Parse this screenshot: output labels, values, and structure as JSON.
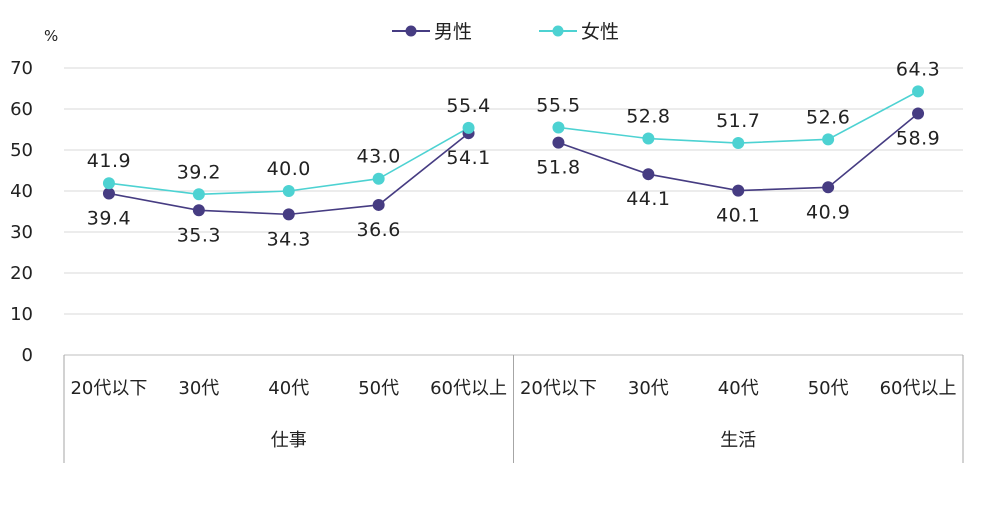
{
  "chart_data": {
    "type": "line",
    "y_unit": "%",
    "ylim": [
      0,
      70
    ],
    "yticks": [
      "0",
      "10",
      "20",
      "30",
      "40",
      "50",
      "60",
      "70"
    ],
    "grid": true,
    "legend_position": "top-center",
    "groups": [
      {
        "label": "仕事",
        "categories": [
          "20代以下",
          "30代",
          "40代",
          "50代",
          "60代以上"
        ]
      },
      {
        "label": "生活",
        "categories": [
          "20代以下",
          "30代",
          "40代",
          "50代",
          "60代以上"
        ]
      }
    ],
    "series": [
      {
        "name": "男性",
        "color": "#463c82",
        "segments": [
          [
            39.4,
            35.3,
            34.3,
            36.6,
            54.1
          ],
          [
            51.8,
            44.1,
            40.1,
            40.9,
            58.9
          ]
        ],
        "labels": [
          [
            "39.4",
            "35.3",
            "34.3",
            "36.6",
            "54.1"
          ],
          [
            "51.8",
            "44.1",
            "40.1",
            "40.9",
            "58.9"
          ]
        ],
        "label_side": "below"
      },
      {
        "name": "女性",
        "color": "#4dd2d2",
        "segments": [
          [
            41.9,
            39.2,
            40.0,
            43.0,
            55.4
          ],
          [
            55.5,
            52.8,
            51.7,
            52.6,
            64.3
          ]
        ],
        "labels": [
          [
            "41.9",
            "39.2",
            "40.0",
            "43.0",
            "55.4"
          ],
          [
            "55.5",
            "52.8",
            "51.7",
            "52.6",
            "64.3"
          ]
        ],
        "label_side": "above"
      }
    ]
  }
}
